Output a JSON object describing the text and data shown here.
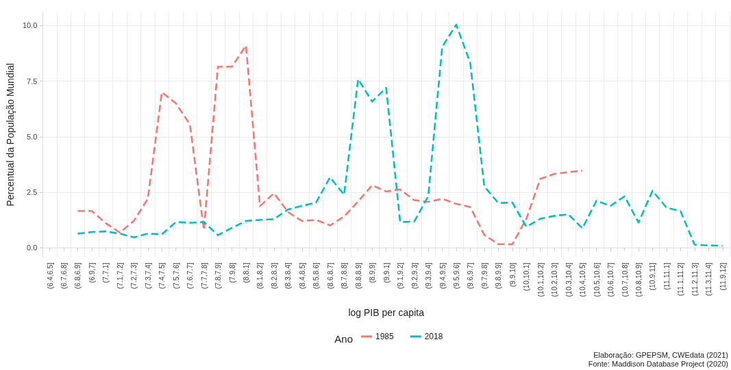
{
  "chart_data": {
    "type": "line",
    "xlabel": "log PIB per capita",
    "ylabel": "Percentual da População Mundial",
    "legend_title": "Ano",
    "categories": [
      "(6.4,6.5]",
      "(6.7,6.8]",
      "(6.8,6.9]",
      "(6.9,7]",
      "(7,7.1]",
      "(7.1,7.2]",
      "(7.2,7.3]",
      "(7.3,7.4]",
      "(7.4,7.5]",
      "(7.5,7.6]",
      "(7.6,7.7]",
      "(7.7,7.8]",
      "(7.8,7.9]",
      "(7.9,8]",
      "(8,8.1]",
      "(8.1,8.2]",
      "(8.2,8.3]",
      "(8.3,8.4]",
      "(8.4,8.5]",
      "(8.5,8.6]",
      "(8.6,8.7]",
      "(8.7,8.8]",
      "(8.8,8.9]",
      "(8.9,9]",
      "(9,9.1]",
      "(9.1,9.2]",
      "(9.2,9.3]",
      "(9.3,9.4]",
      "(9.4,9.5]",
      "(9.5,9.6]",
      "(9.6,9.7]",
      "(9.7,9.8]",
      "(9.8,9.9]",
      "(9.9,10]",
      "(10,10.1]",
      "(10.1,10.2]",
      "(10.2,10.3]",
      "(10.3,10.4]",
      "(10.4,10.5]",
      "(10.5,10.6]",
      "(10.6,10.7]",
      "(10.7,10.8]",
      "(10.8,10.9]",
      "(10.9,11]",
      "(11,11.1]",
      "(11.1,11.2]",
      "(11.2,11.3]",
      "(11.3,11.4]",
      "(11.9,12]"
    ],
    "series": [
      {
        "name": "1985",
        "color": "#f8766d",
        "values": [
          null,
          null,
          1.65,
          1.65,
          1.1,
          0.68,
          1.2,
          2.2,
          7.0,
          6.5,
          5.55,
          0.8,
          8.15,
          8.15,
          9.1,
          1.87,
          2.45,
          1.6,
          1.2,
          1.25,
          1.0,
          1.4,
          2.08,
          2.81,
          2.53,
          2.62,
          2.14,
          2.06,
          2.2,
          1.97,
          1.83,
          0.57,
          0.16,
          0.15,
          1.3,
          3.1,
          3.32,
          3.4,
          3.47,
          null,
          null,
          null,
          null,
          null,
          null,
          null,
          null,
          null,
          null
        ]
      },
      {
        "name": "2018",
        "color": "#00bfc4",
        "values": [
          null,
          null,
          0.63,
          0.7,
          0.73,
          0.63,
          0.46,
          0.63,
          0.6,
          1.15,
          1.12,
          1.15,
          0.56,
          0.89,
          1.2,
          1.25,
          1.28,
          1.72,
          1.88,
          2.03,
          3.17,
          2.38,
          7.59,
          6.58,
          7.2,
          1.15,
          1.17,
          2.31,
          9.05,
          10.04,
          8.32,
          2.76,
          2.01,
          2.03,
          0.94,
          1.3,
          1.43,
          1.5,
          0.87,
          2.11,
          1.88,
          2.31,
          1.13,
          2.56,
          1.8,
          1.64,
          0.13,
          0.1,
          0.08
        ]
      }
    ],
    "ylim": [
      -0.43,
      10.6
    ],
    "yticks": [
      {
        "value": 0,
        "label": "0.0"
      },
      {
        "value": 2.5,
        "label": "2.5"
      },
      {
        "value": 5,
        "label": "5.0"
      },
      {
        "value": 7.5,
        "label": "7.5"
      },
      {
        "value": 10,
        "label": "10.0"
      }
    ],
    "grid": true,
    "legend": "bottom",
    "marker": "none",
    "line_style": "dashed",
    "annotations": [
      "Elaboração: GPEPSM, CWEdata (2021)",
      "Fonte: Maddison Database Project (2020)"
    ]
  }
}
